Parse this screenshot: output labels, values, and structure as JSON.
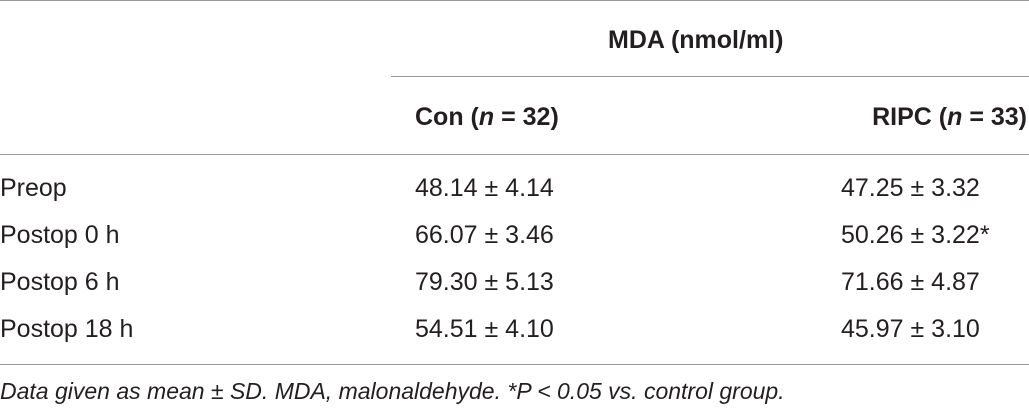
{
  "table": {
    "group_header": "MDA (nmol/ml)",
    "columns": [
      {
        "prefix": "Con (",
        "italic": "n",
        "suffix": " = 32)"
      },
      {
        "prefix": "RIPC (",
        "italic": "n",
        "suffix": " = 33)"
      }
    ],
    "rows": [
      {
        "label": "Preop",
        "con": "48.14 ± 4.14",
        "ripc": "47.25 ± 3.32"
      },
      {
        "label": "Postop 0 h",
        "con": "66.07 ± 3.46",
        "ripc": "50.26 ± 3.22*"
      },
      {
        "label": "Postop 6 h",
        "con": "79.30 ± 5.13",
        "ripc": "71.66 ± 4.87"
      },
      {
        "label": "Postop 18 h",
        "con": "54.51 ± 4.10",
        "ripc": "45.97 ± 3.10"
      }
    ],
    "footnote": "Data given as mean ± SD. MDA, malonaldehyde. *P < 0.05 vs. control group."
  }
}
